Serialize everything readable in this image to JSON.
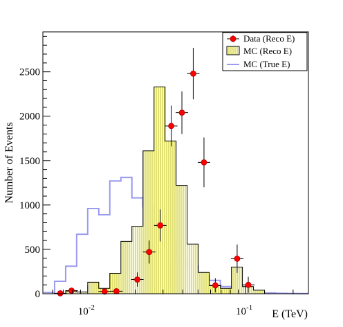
{
  "chart_data": {
    "type": "histogram",
    "xlabel": "E (TeV)",
    "ylabel": "Number of Events",
    "x_scale": "log",
    "xlim": [
      0.0052,
      0.25
    ],
    "ylim": [
      0,
      2950
    ],
    "x_ticks": [
      {
        "value": 0.01,
        "base": "10",
        "exp": "-2"
      },
      {
        "value": 0.1,
        "base": "10",
        "exp": "-1"
      }
    ],
    "y_ticks": [
      0,
      500,
      1000,
      1500,
      2000,
      2500
    ],
    "legend": {
      "position": "top-right",
      "entries": [
        {
          "key": "data",
          "label": "Data (Reco E)"
        },
        {
          "key": "mc_reco",
          "label": "MC   (Reco E)"
        },
        {
          "key": "mc_true",
          "label": "MC   (True E)"
        }
      ]
    },
    "bin_edges": [
      0.00525,
      0.00617,
      0.00725,
      0.00851,
      0.01,
      0.01175,
      0.0138,
      0.01622,
      0.01905,
      0.02239,
      0.0263,
      0.0309,
      0.03631,
      0.04266,
      0.05012,
      0.05888,
      0.06918,
      0.08128,
      0.0955,
      0.1122,
      0.1318,
      0.1549,
      0.182,
      0.2138,
      0.2512
    ],
    "series": [
      {
        "name": "MC   (True E)",
        "type": "step",
        "color": "#9a9af0",
        "values": [
          15,
          140,
          310,
          670,
          960,
          890,
          1270,
          1310,
          1080,
          980,
          770,
          580,
          370,
          310,
          200,
          150,
          80,
          60,
          40,
          20,
          10,
          5,
          3,
          2
        ]
      },
      {
        "name": "MC   (Reco E)",
        "type": "filled-step",
        "color": "#c8c800",
        "values": [
          0,
          0,
          30,
          20,
          130,
          60,
          230,
          590,
          760,
          1610,
          2330,
          1720,
          1220,
          560,
          240,
          90,
          60,
          300,
          80,
          40,
          0,
          0,
          0,
          0
        ]
      },
      {
        "name": "Data (Reco E)",
        "type": "points",
        "color": "#ff0000",
        "points": [
          {
            "x": 0.0067,
            "y": 5,
            "err": 10
          },
          {
            "x": 0.0079,
            "y": 35,
            "err": 20
          },
          {
            "x": 0.0128,
            "y": 25,
            "err": 20
          },
          {
            "x": 0.0152,
            "y": 28,
            "err": 25
          },
          {
            "x": 0.0206,
            "y": 160,
            "err": 80
          },
          {
            "x": 0.0245,
            "y": 470,
            "err": 130
          },
          {
            "x": 0.0288,
            "y": 770,
            "err": 180
          },
          {
            "x": 0.0338,
            "y": 1890,
            "err": 230
          },
          {
            "x": 0.0395,
            "y": 2040,
            "err": 240
          },
          {
            "x": 0.0466,
            "y": 2480,
            "err": 290
          },
          {
            "x": 0.0545,
            "y": 1480,
            "err": 280
          },
          {
            "x": 0.0643,
            "y": 95,
            "err": 80
          },
          {
            "x": 0.0884,
            "y": 395,
            "err": 160
          },
          {
            "x": 0.104,
            "y": 100,
            "err": 90
          }
        ]
      }
    ]
  }
}
